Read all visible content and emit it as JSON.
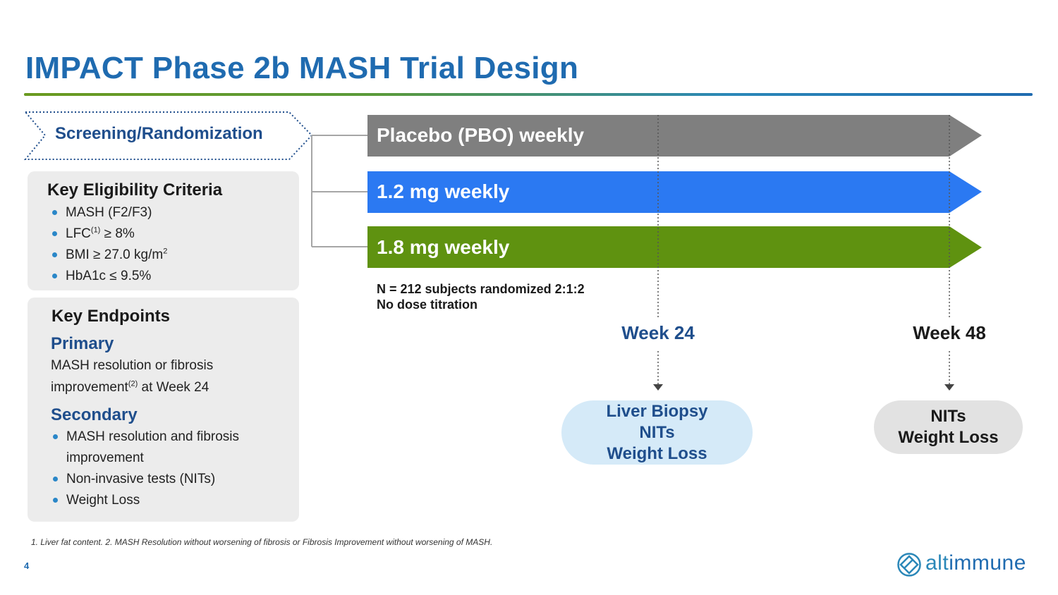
{
  "title": "IMPACT Phase 2b MASH Trial Design",
  "screening": {
    "label": "Screening/Randomization"
  },
  "eligibility": {
    "heading": "Key Eligibility Criteria",
    "items": [
      {
        "pre": "MASH (F2/F3)",
        "sup": "",
        "post": ""
      },
      {
        "pre": "LFC",
        "sup": "(1)",
        "post": " ≥ 8%"
      },
      {
        "pre": "BMI ≥ 27.0 kg/m",
        "sup": "2",
        "post": ""
      },
      {
        "pre": "HbA1c ≤ 9.5%",
        "sup": "",
        "post": ""
      }
    ]
  },
  "endpoints": {
    "heading": "Key Endpoints",
    "primary_heading": "Primary",
    "primary_pre": "MASH resolution or fibrosis improvement",
    "primary_sup": "(2)",
    "primary_post": " at Week 24",
    "secondary_heading": "Secondary",
    "secondary_items": [
      "MASH resolution and fibrosis improvement",
      "Non-invasive tests (NITs)",
      "Weight Loss"
    ]
  },
  "arms": [
    {
      "label": "Placebo (PBO) weekly",
      "color": "#7f7f7f"
    },
    {
      "label": "1.2 mg weekly",
      "color": "#2b79f2"
    },
    {
      "label": "1.8 mg weekly",
      "color": "#5f9210"
    }
  ],
  "note": {
    "line1": "N = 212 subjects randomized 2:1:2",
    "line2": "No dose titration"
  },
  "milestones": [
    {
      "week": "Week 24",
      "week_color": "#1f4e8c",
      "assessments": [
        "Liver Biopsy",
        "NITs",
        "Weight Loss"
      ]
    },
    {
      "week": "Week 48",
      "week_color": "#1a1a1a",
      "assessments": [
        "NITs",
        "Weight Loss"
      ]
    }
  ],
  "footnote": "1. Liver fat content. 2. MASH Resolution without worsening of fibrosis or Fibrosis Improvement without worsening of MASH.",
  "page_number": "4",
  "brand": {
    "alt": "alt",
    "rest": "immune"
  },
  "colors": {
    "accent": "#1f6bb0",
    "navy": "#1f4e8c",
    "bullet": "#2a87c8"
  }
}
